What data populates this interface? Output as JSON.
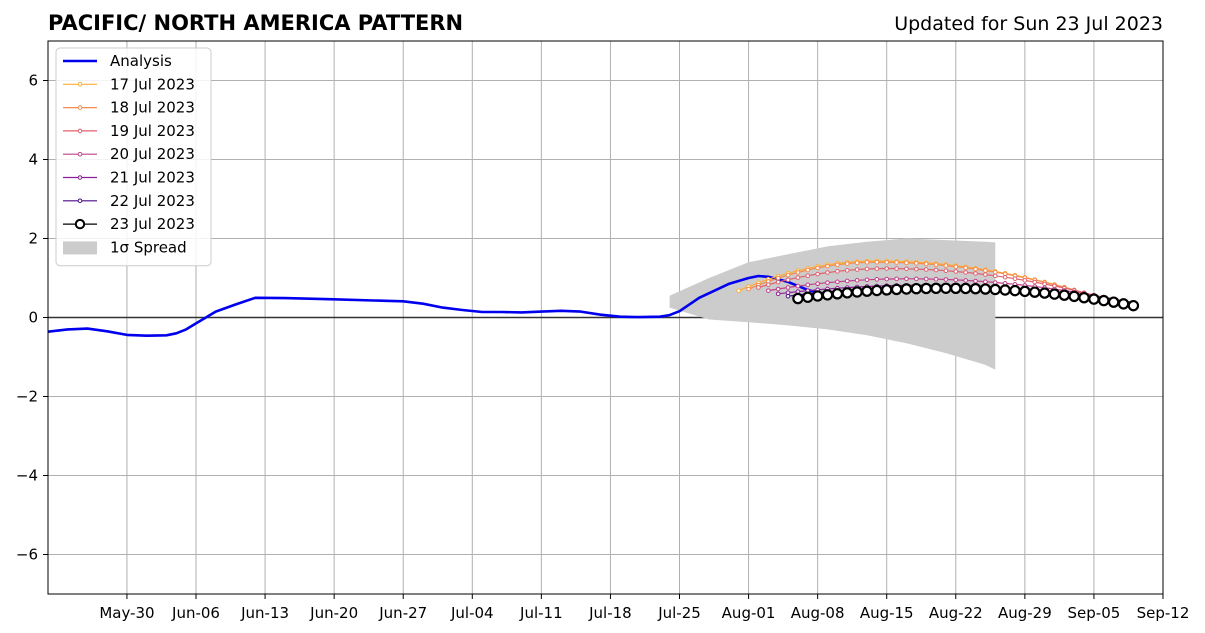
{
  "chart_data": {
    "type": "line",
    "title": "PACIFIC/ NORTH AMERICA PATTERN",
    "subtitle": "Updated for Sun 23 Jul 2023",
    "xlabel": "",
    "ylabel": "",
    "xlim": [
      "2023-05-22",
      "2023-09-12"
    ],
    "ylim": [
      -7,
      7
    ],
    "x_ticks": [
      "May-30",
      "Jun-06",
      "Jun-13",
      "Jun-20",
      "Jun-27",
      "Jul-04",
      "Jul-11",
      "Jul-18",
      "Jul-25",
      "Aug-01",
      "Aug-08",
      "Aug-15",
      "Aug-22",
      "Aug-29",
      "Sep-05",
      "Sep-12"
    ],
    "x_tick_dates": [
      "2023-05-30",
      "2023-06-06",
      "2023-06-13",
      "2023-06-20",
      "2023-06-27",
      "2023-07-04",
      "2023-07-11",
      "2023-07-18",
      "2023-07-25",
      "2023-08-01",
      "2023-08-08",
      "2023-08-15",
      "2023-08-22",
      "2023-08-29",
      "2023-09-05",
      "2023-09-12"
    ],
    "y_ticks": [
      6,
      4,
      2,
      0,
      -2,
      -4,
      -6
    ],
    "y_tick_labels": [
      "6",
      "4",
      "2",
      "0",
      "−2",
      "−4",
      "−6"
    ],
    "grid": true,
    "zero_line": true,
    "legend_position": "top-left",
    "analysis": {
      "name": "Analysis",
      "color": "#0000ee",
      "points": [
        [
          "2023-05-22",
          -0.36
        ],
        [
          "2023-05-24",
          -0.3
        ],
        [
          "2023-05-26",
          -0.28
        ],
        [
          "2023-05-28",
          -0.35
        ],
        [
          "2023-05-30",
          -0.44
        ],
        [
          "2023-06-01",
          -0.46
        ],
        [
          "2023-06-03",
          -0.45
        ],
        [
          "2023-06-04",
          -0.4
        ],
        [
          "2023-06-05",
          -0.3
        ],
        [
          "2023-06-06",
          -0.15
        ],
        [
          "2023-06-07",
          0.0
        ],
        [
          "2023-06-08",
          0.15
        ],
        [
          "2023-06-10",
          0.33
        ],
        [
          "2023-06-12",
          0.5
        ],
        [
          "2023-06-15",
          0.49
        ],
        [
          "2023-06-20",
          0.46
        ],
        [
          "2023-06-24",
          0.43
        ],
        [
          "2023-06-27",
          0.41
        ],
        [
          "2023-06-29",
          0.35
        ],
        [
          "2023-07-01",
          0.25
        ],
        [
          "2023-07-03",
          0.19
        ],
        [
          "2023-07-05",
          0.14
        ],
        [
          "2023-07-07",
          0.14
        ],
        [
          "2023-07-09",
          0.13
        ],
        [
          "2023-07-11",
          0.15
        ],
        [
          "2023-07-13",
          0.17
        ],
        [
          "2023-07-15",
          0.15
        ],
        [
          "2023-07-17",
          0.07
        ],
        [
          "2023-07-19",
          0.02
        ],
        [
          "2023-07-21",
          0.01
        ],
        [
          "2023-07-23",
          0.02
        ],
        [
          "2023-07-24",
          0.06
        ],
        [
          "2023-07-25",
          0.16
        ],
        [
          "2023-07-27",
          0.5
        ],
        [
          "2023-07-30",
          0.85
        ],
        [
          "2023-08-01",
          1.0
        ],
        [
          "2023-08-02",
          1.05
        ],
        [
          "2023-08-03",
          1.03
        ],
        [
          "2023-08-05",
          0.9
        ],
        [
          "2023-08-07",
          0.7
        ],
        [
          "2023-08-09",
          0.55
        ]
      ]
    },
    "spread": {
      "name": "1σ Spread",
      "color": "#cccccc",
      "upper": [
        [
          "2023-07-24",
          0.55
        ],
        [
          "2023-07-28",
          1.0
        ],
        [
          "2023-08-01",
          1.4
        ],
        [
          "2023-08-05",
          1.6
        ],
        [
          "2023-08-09",
          1.8
        ],
        [
          "2023-08-13",
          1.92
        ],
        [
          "2023-08-17",
          2.0
        ],
        [
          "2023-08-21",
          1.96
        ],
        [
          "2023-08-25",
          1.92
        ],
        [
          "2023-08-26",
          1.9
        ]
      ],
      "lower": [
        [
          "2023-07-24",
          0.25
        ],
        [
          "2023-07-28",
          -0.05
        ],
        [
          "2023-08-01",
          -0.12
        ],
        [
          "2023-08-05",
          -0.2
        ],
        [
          "2023-08-09",
          -0.3
        ],
        [
          "2023-08-13",
          -0.45
        ],
        [
          "2023-08-17",
          -0.65
        ],
        [
          "2023-08-21",
          -0.9
        ],
        [
          "2023-08-25",
          -1.2
        ],
        [
          "2023-08-26",
          -1.32
        ]
      ]
    },
    "series": [
      {
        "name": "17 Jul 2023",
        "color": "#fdae3a",
        "start": "2023-07-31",
        "days": 35,
        "y0": 0.68,
        "ypeak": 1.43,
        "tpeak": 14,
        "yend": 0.62
      },
      {
        "name": "18 Jul 2023",
        "color": "#f58b4c",
        "start": "2023-08-01",
        "days": 35,
        "y0": 0.72,
        "ypeak": 1.4,
        "tpeak": 13,
        "yend": 0.55
      },
      {
        "name": "19 Jul 2023",
        "color": "#e0616f",
        "start": "2023-08-02",
        "days": 35,
        "y0": 0.76,
        "ypeak": 1.24,
        "tpeak": 13,
        "yend": 0.5
      },
      {
        "name": "20 Jul 2023",
        "color": "#c1408a",
        "start": "2023-08-03",
        "days": 35,
        "y0": 0.68,
        "ypeak": 0.98,
        "tpeak": 14,
        "yend": 0.47
      },
      {
        "name": "21 Jul 2023",
        "color": "#8d1e99",
        "start": "2023-08-04",
        "days": 35,
        "y0": 0.6,
        "ypeak": 0.82,
        "tpeak": 15,
        "yend": 0.42
      },
      {
        "name": "22 Jul 2023",
        "color": "#4a0c8a",
        "start": "2023-08-05",
        "days": 35,
        "y0": 0.54,
        "ypeak": 0.76,
        "tpeak": 14,
        "yend": 0.38
      },
      {
        "name": "23 Jul 2023",
        "color": "#000000",
        "start": "2023-08-06",
        "days": 34,
        "y0": 0.48,
        "ypeak": 0.74,
        "tpeak": 15,
        "yend": 0.3
      }
    ]
  }
}
